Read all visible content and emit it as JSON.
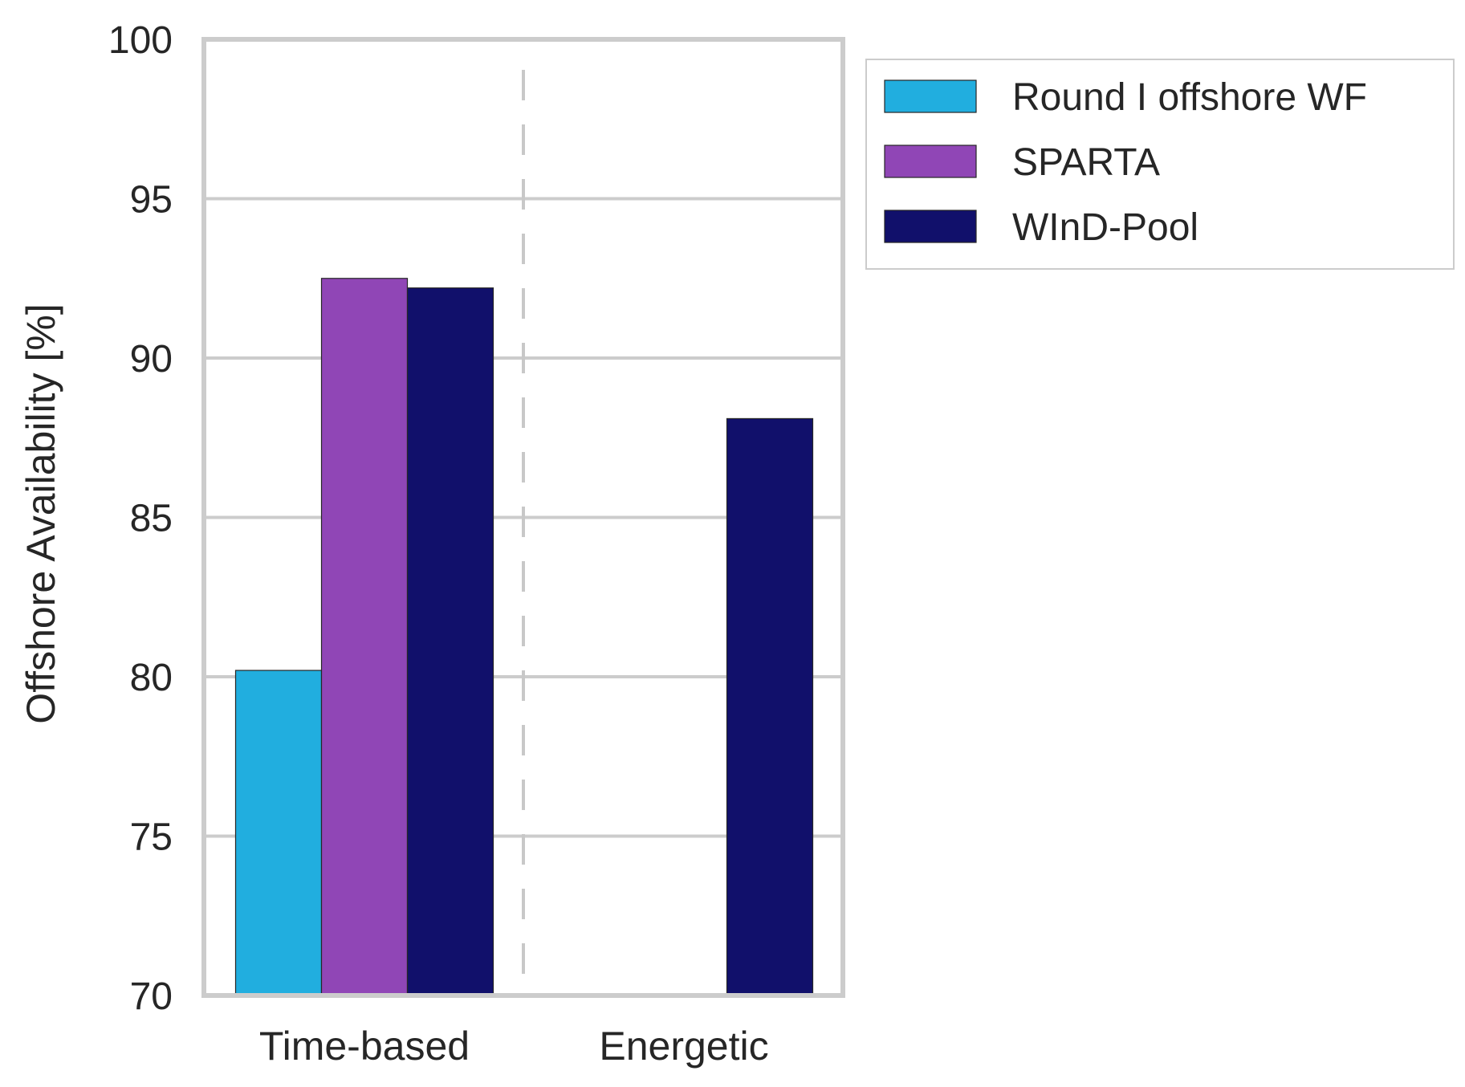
{
  "chart_data": {
    "type": "bar",
    "title": "",
    "xlabel": "",
    "ylabel": "Offshore Availability [%]",
    "ylim": [
      70,
      100
    ],
    "yticks": [
      "70",
      "75",
      "80",
      "85",
      "90",
      "95",
      "100"
    ],
    "categories": [
      "Time-based",
      "Energetic"
    ],
    "series": [
      {
        "name": "Round I offshore WF",
        "color": "#21aedf",
        "values": [
          80.2,
          null
        ]
      },
      {
        "name": "SPARTA",
        "color": "#9046b6",
        "values": [
          92.5,
          null
        ]
      },
      {
        "name": "WInD-Pool",
        "color": "#11106b",
        "values": [
          92.2,
          88.1
        ]
      }
    ],
    "grid": true,
    "separator": "dashed vertical line between categories",
    "legend_position": "outside-top-right"
  }
}
